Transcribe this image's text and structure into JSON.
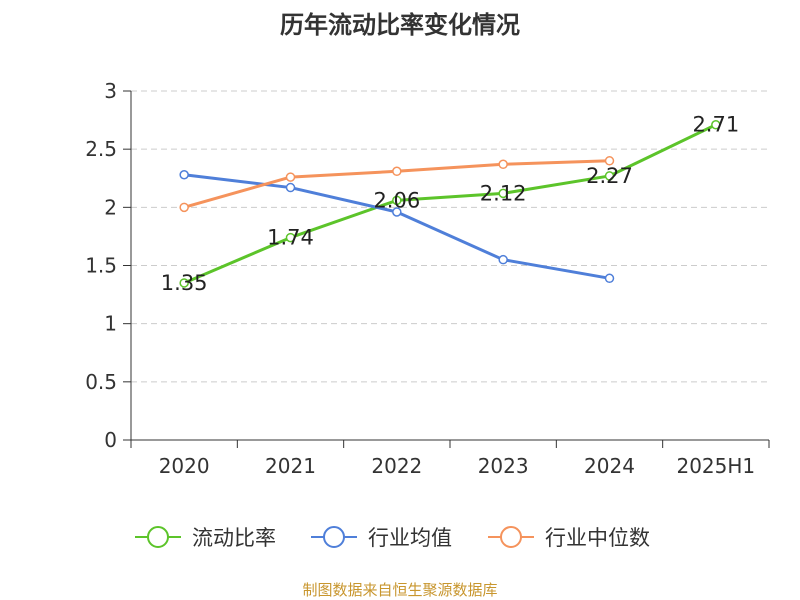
{
  "chart_data": {
    "type": "line",
    "title": "历年流动比率变化情况",
    "xlabel": "",
    "ylabel": "",
    "categories": [
      "2020",
      "2021",
      "2022",
      "2023",
      "2024",
      "2025H1"
    ],
    "ylim": [
      0,
      3
    ],
    "yticks": [
      "0",
      "0.5",
      "1",
      "1.5",
      "2",
      "2.5",
      "3"
    ],
    "grid": true,
    "legend_position": "bottom",
    "series": [
      {
        "name": "流动比率",
        "color": "#5cc42a",
        "values": [
          1.35,
          1.74,
          2.06,
          2.12,
          2.27,
          2.71
        ],
        "labels": [
          "1.35",
          "1.74",
          "2.06",
          "2.12",
          "2.27",
          "2.71"
        ]
      },
      {
        "name": "行业均值",
        "color": "#4f7fd9",
        "values": [
          2.28,
          2.17,
          1.96,
          1.55,
          1.39,
          null
        ]
      },
      {
        "name": "行业中位数",
        "color": "#f5935c",
        "values": [
          2.0,
          2.26,
          2.31,
          2.37,
          2.4,
          null
        ]
      }
    ],
    "source": "制图数据来自恒生聚源数据库"
  }
}
